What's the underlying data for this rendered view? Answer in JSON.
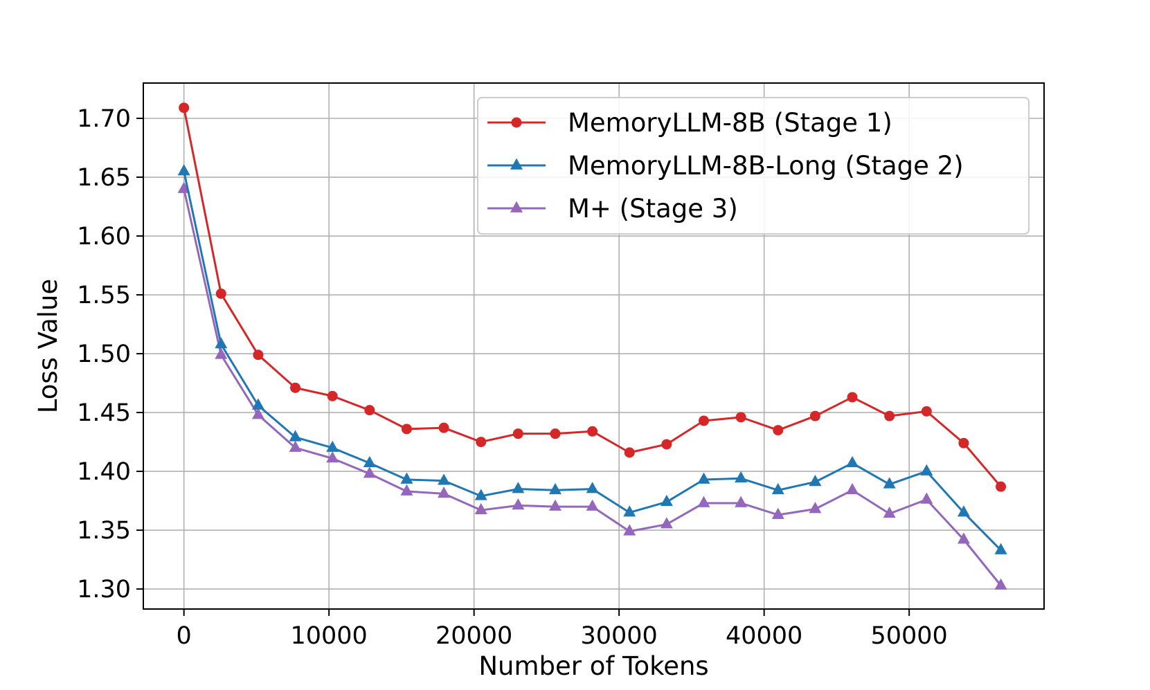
{
  "chart_data": {
    "type": "line",
    "title": "",
    "xlabel": "Number of Tokens",
    "ylabel": "Loss Value",
    "xlim": [
      -2800,
      59300
    ],
    "ylim": [
      1.283,
      1.73
    ],
    "xticks": [
      0,
      10000,
      20000,
      30000,
      40000,
      50000
    ],
    "xtick_labels": [
      "0",
      "10000",
      "20000",
      "30000",
      "40000",
      "50000"
    ],
    "yticks": [
      1.3,
      1.35,
      1.4,
      1.45,
      1.5,
      1.55,
      1.6,
      1.65,
      1.7
    ],
    "ytick_labels": [
      "1.30",
      "1.35",
      "1.40",
      "1.45",
      "1.50",
      "1.55",
      "1.60",
      "1.65",
      "1.70"
    ],
    "grid": true,
    "legend_position": "top-right",
    "x": [
      0,
      2560,
      5120,
      7680,
      10240,
      12800,
      15360,
      17920,
      20480,
      23040,
      25600,
      28160,
      30720,
      33280,
      35840,
      38400,
      40960,
      43520,
      46080,
      48640,
      51200,
      53760,
      56320
    ],
    "series": [
      {
        "name": "MemoryLLM-8B (Stage 1)",
        "color": "#d62728",
        "marker": "circle",
        "values": [
          1.709,
          1.551,
          1.499,
          1.471,
          1.464,
          1.452,
          1.436,
          1.437,
          1.425,
          1.432,
          1.432,
          1.434,
          1.416,
          1.423,
          1.443,
          1.446,
          1.435,
          1.447,
          1.463,
          1.447,
          1.451,
          1.424,
          1.387
        ]
      },
      {
        "name": "MemoryLLM-8B-Long (Stage 2)",
        "color": "#1f77b4",
        "marker": "triangle",
        "values": [
          1.655,
          1.508,
          1.456,
          1.429,
          1.42,
          1.407,
          1.393,
          1.392,
          1.379,
          1.385,
          1.384,
          1.385,
          1.365,
          1.374,
          1.393,
          1.394,
          1.384,
          1.391,
          1.407,
          1.389,
          1.4,
          1.365,
          1.333
        ]
      },
      {
        "name": "M+ (Stage 3)",
        "color": "#9467bd",
        "marker": "triangle",
        "values": [
          1.64,
          1.499,
          1.448,
          1.42,
          1.411,
          1.398,
          1.383,
          1.381,
          1.367,
          1.371,
          1.37,
          1.37,
          1.349,
          1.355,
          1.373,
          1.373,
          1.363,
          1.368,
          1.384,
          1.364,
          1.376,
          1.342,
          1.303
        ]
      }
    ]
  }
}
